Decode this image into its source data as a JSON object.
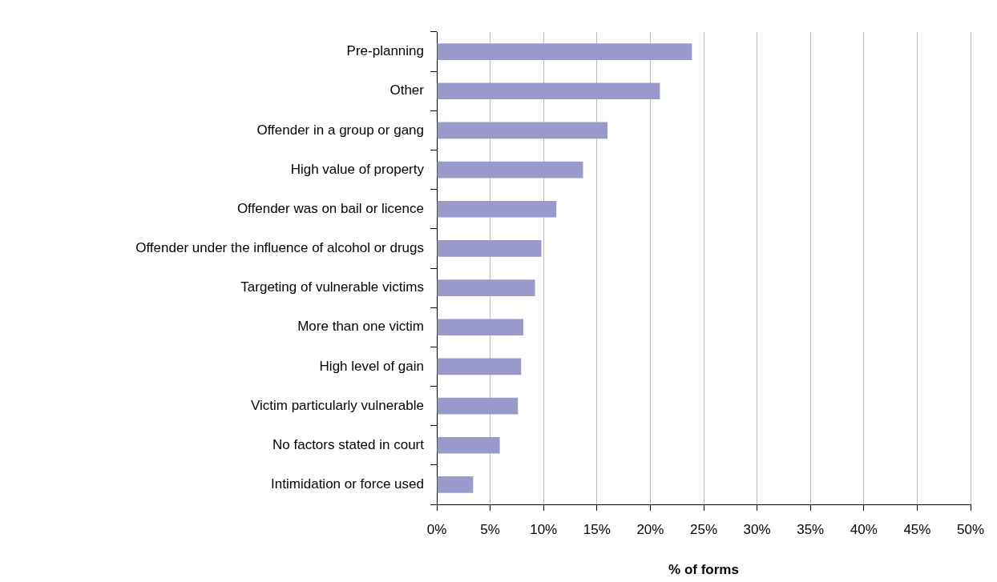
{
  "chart_data": {
    "type": "bar",
    "orientation": "horizontal",
    "xlabel": "% of forms",
    "categories": [
      "Pre-planning",
      "Other",
      "Offender in a group or gang",
      "High value of property",
      "Offender was on bail or licence",
      "Offender under the influence of alcohol or drugs",
      "Targeting of vulnerable victims",
      "More than one victim",
      "High level of gain",
      "Victim particularly vulnerable",
      "No factors stated in court",
      "Intimidation or force used"
    ],
    "values": [
      23.9,
      20.9,
      16.0,
      13.7,
      11.2,
      9.8,
      9.2,
      8.1,
      7.9,
      7.6,
      5.9,
      3.4
    ],
    "color": "#9999cc",
    "xlim": [
      0,
      50
    ],
    "xticks": [
      {
        "value": 0,
        "label": "0%"
      },
      {
        "value": 5,
        "label": "5%"
      },
      {
        "value": 10,
        "label": "10%"
      },
      {
        "value": 15,
        "label": "15%"
      },
      {
        "value": 20,
        "label": "20%"
      },
      {
        "value": 25,
        "label": "25%"
      },
      {
        "value": 30,
        "label": "30%"
      },
      {
        "value": 35,
        "label": "35%"
      },
      {
        "value": 40,
        "label": "40%"
      },
      {
        "value": 45,
        "label": "45%"
      },
      {
        "value": 50,
        "label": "50%"
      }
    ],
    "grid": "x",
    "legend": false
  }
}
